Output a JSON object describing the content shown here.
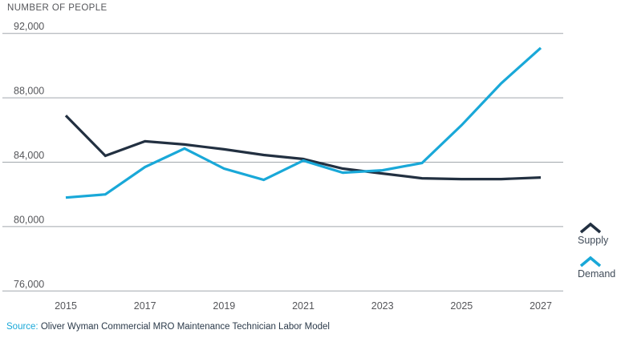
{
  "title": "NUMBER OF PEOPLE",
  "source": {
    "prefix": "Source:",
    "text": " Oliver Wyman Commercial MRO Maintenance Technician Labor Model"
  },
  "legend": {
    "items": [
      {
        "label": "Supply",
        "color": "#223041"
      },
      {
        "label": "Demand",
        "color": "#19a8d8"
      }
    ]
  },
  "colors": {
    "supply": "#223041",
    "demand": "#19a8d8",
    "grid": "#a2a7ad",
    "axis_text": "#55565a",
    "title_text": "#55565a",
    "legend_text": "#414c59",
    "source_prefix": "#19a8d8",
    "source_text": "#2b3a4a"
  },
  "chart_data": {
    "type": "line",
    "title": "NUMBER OF PEOPLE",
    "x": [
      2015,
      2016,
      2017,
      2018,
      2019,
      2020,
      2021,
      2022,
      2023,
      2024,
      2025,
      2026,
      2027
    ],
    "series": [
      {
        "name": "Supply",
        "color": "#223041",
        "values": [
          86900,
          84400,
          85300,
          85100,
          84800,
          84450,
          84200,
          83600,
          83300,
          83000,
          82950,
          82950,
          83050
        ]
      },
      {
        "name": "Demand",
        "color": "#19a8d8",
        "values": [
          81800,
          82000,
          83700,
          84850,
          83600,
          82900,
          84100,
          83350,
          83500,
          83950,
          86300,
          88900,
          91100
        ]
      }
    ],
    "ylabel": "NUMBER OF PEOPLE",
    "xlabel": "",
    "ylim": [
      76000,
      92000
    ],
    "yticks": [
      92000,
      88000,
      84000,
      80000,
      76000
    ],
    "ytick_labels": [
      "92,000",
      "88,000",
      "84,000",
      "80,000",
      "76,000"
    ],
    "xticks": [
      2015,
      2017,
      2019,
      2021,
      2023,
      2025,
      2027
    ],
    "xtick_labels": [
      "2015",
      "2017",
      "2019",
      "2021",
      "2023",
      "2025",
      "2027"
    ],
    "grid": "horizontal",
    "legend_position": "right"
  }
}
